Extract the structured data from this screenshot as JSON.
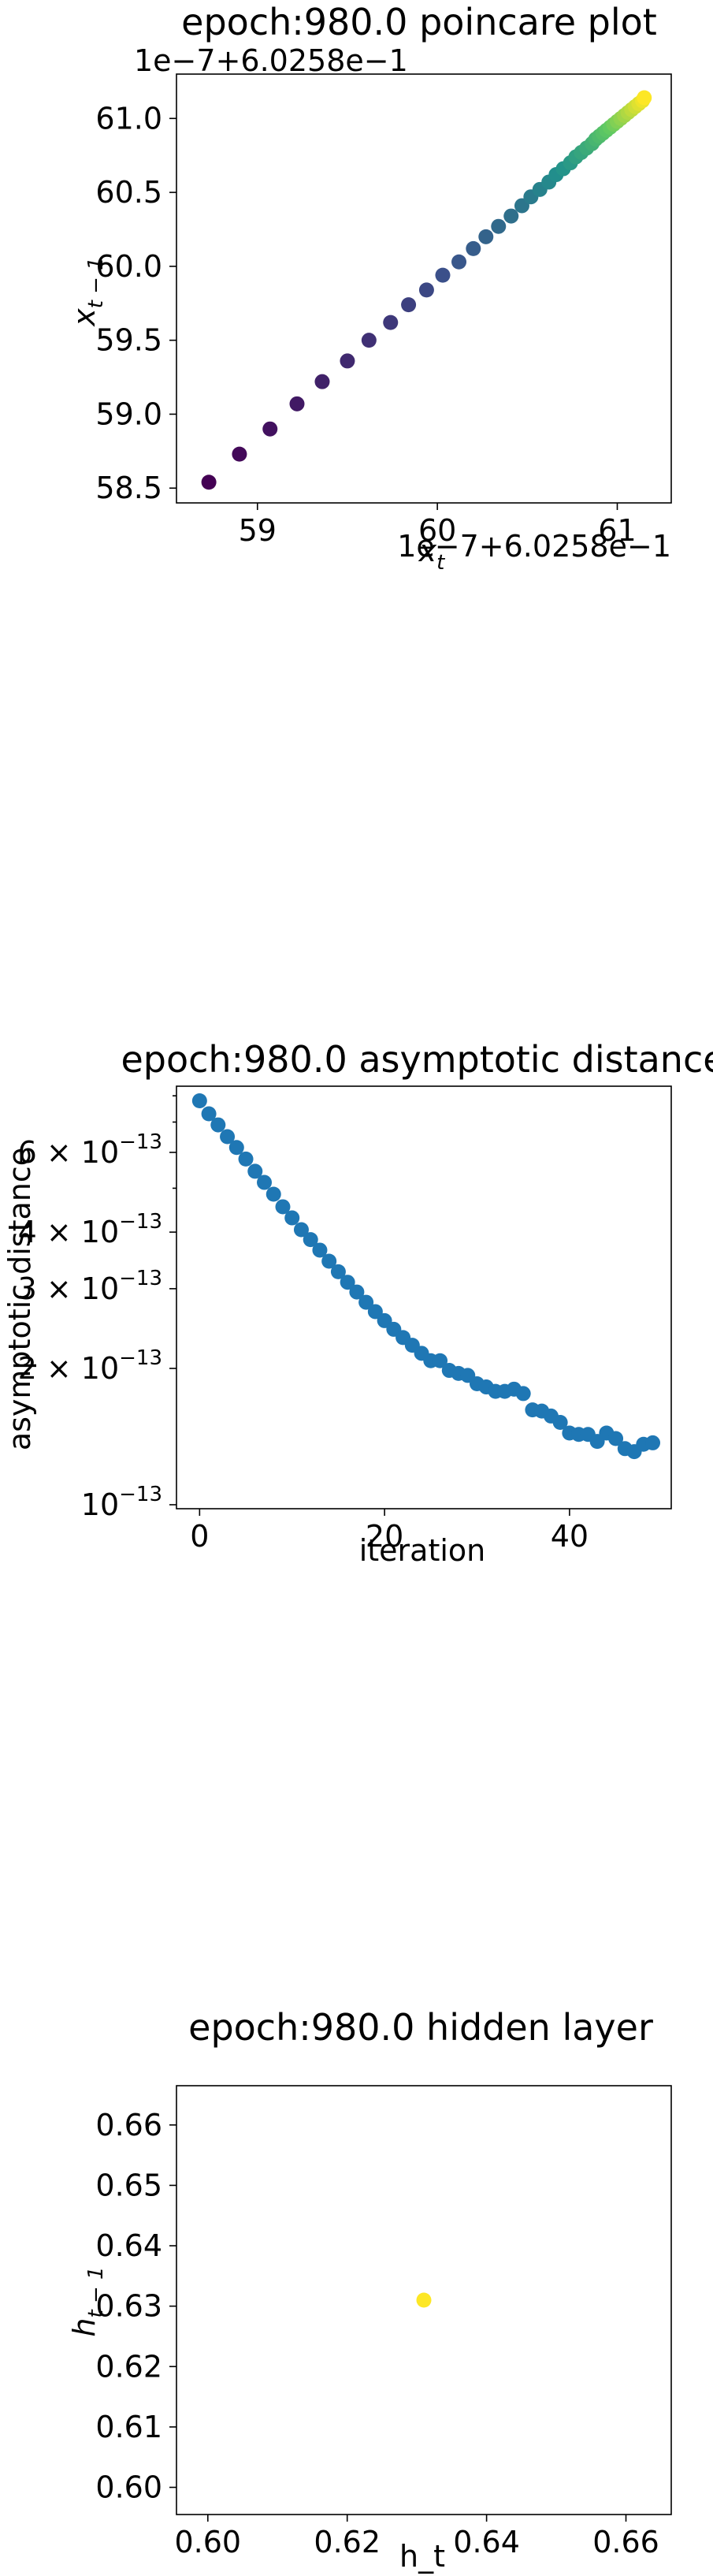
{
  "chart_data": [
    {
      "type": "scatter",
      "title": "epoch:980.0 poincare plot",
      "xlabel": "x_t",
      "ylabel": "x_{t-1}",
      "x_offset_text": "1e−7+6.0258e−1",
      "y_offset_text": "1e−7+6.0258e−1",
      "xlim": [
        58.55,
        61.3
      ],
      "ylim": [
        58.4,
        61.3
      ],
      "xticks": [
        59,
        60,
        61
      ],
      "yticks": [
        58.5,
        59.0,
        59.5,
        60.0,
        60.5,
        61.0
      ],
      "ytick_labels": [
        "58.5",
        "59.0",
        "59.5",
        "60.0",
        "60.5",
        "61.0"
      ],
      "colormap": "viridis",
      "x": [
        58.73,
        58.9,
        59.07,
        59.22,
        59.36,
        59.5,
        59.62,
        59.74,
        59.84,
        59.94,
        60.03,
        60.12,
        60.2,
        60.27,
        60.34,
        60.41,
        60.47,
        60.52,
        60.57,
        60.62,
        60.66,
        60.7,
        60.74,
        60.77,
        60.8,
        60.83,
        60.86,
        60.88,
        60.9,
        60.92,
        60.94,
        60.96,
        60.98,
        61.0,
        61.02,
        61.04,
        61.06,
        61.08,
        61.1,
        61.12,
        61.14,
        61.15
      ],
      "y": [
        58.54,
        58.73,
        58.9,
        59.07,
        59.22,
        59.36,
        59.5,
        59.62,
        59.74,
        59.84,
        59.94,
        60.03,
        60.12,
        60.2,
        60.27,
        60.34,
        60.41,
        60.47,
        60.52,
        60.57,
        60.62,
        60.66,
        60.7,
        60.74,
        60.77,
        60.8,
        60.83,
        60.86,
        60.88,
        60.9,
        60.92,
        60.94,
        60.96,
        60.98,
        61.0,
        61.02,
        61.04,
        61.06,
        61.08,
        61.1,
        61.12,
        61.14
      ]
    },
    {
      "type": "scatter",
      "title": "epoch:980.0 asymptotic distance",
      "xlabel": "iteration",
      "ylabel": "asymptotic distance",
      "yscale": "log",
      "xlim": [
        -2.5,
        51
      ],
      "ylim": [
        9.8e-14,
        8.4e-13
      ],
      "xticks": [
        0,
        20,
        40
      ],
      "yticks": [
        1e-13,
        2e-13,
        3e-13,
        4e-13,
        6e-13
      ],
      "ytick_labels": [
        {
          "mantissa": "",
          "base": "10",
          "exp": "−13"
        },
        {
          "mantissa": "2 × ",
          "base": "10",
          "exp": "−13"
        },
        {
          "mantissa": "3 × ",
          "base": "10",
          "exp": "−13"
        },
        {
          "mantissa": "4 × ",
          "base": "10",
          "exp": "−13"
        },
        {
          "mantissa": "6 × ",
          "base": "10",
          "exp": "−13"
        }
      ],
      "color": "#1f77b4",
      "x": [
        0,
        1,
        2,
        3,
        4,
        5,
        6,
        7,
        8,
        9,
        10,
        11,
        12,
        13,
        14,
        15,
        16,
        17,
        18,
        19,
        20,
        21,
        22,
        23,
        24,
        25,
        26,
        27,
        28,
        29,
        30,
        31,
        32,
        33,
        34,
        35,
        36,
        37,
        38,
        39,
        40,
        41,
        42,
        43,
        44,
        45,
        46,
        47,
        48,
        49
      ],
      "y": [
        7.8e-13,
        7.3e-13,
        6.9e-13,
        6.5e-13,
        6.15e-13,
        5.8e-13,
        5.45e-13,
        5.15e-13,
        4.85e-13,
        4.55e-13,
        4.3e-13,
        4.05e-13,
        3.85e-13,
        3.65e-13,
        3.45e-13,
        3.27e-13,
        3.1e-13,
        2.95e-13,
        2.8e-13,
        2.67e-13,
        2.55e-13,
        2.44e-13,
        2.34e-13,
        2.25e-13,
        2.16e-13,
        2.08e-13,
        2.08e-13,
        1.98e-13,
        1.95e-13,
        1.93e-13,
        1.85e-13,
        1.82e-13,
        1.78e-13,
        1.78e-13,
        1.8e-13,
        1.76e-13,
        1.62e-13,
        1.61e-13,
        1.57e-13,
        1.52e-13,
        1.44e-13,
        1.43e-13,
        1.43e-13,
        1.38e-13,
        1.44e-13,
        1.4e-13,
        1.33e-13,
        1.31e-13,
        1.36e-13,
        1.37e-13
      ]
    },
    {
      "type": "scatter",
      "title": "epoch:980.0 hidden layer",
      "xlabel": "h_t",
      "ylabel": "h_{t-1}",
      "xlim": [
        0.5955,
        0.6665
      ],
      "ylim": [
        0.5955,
        0.6665
      ],
      "xticks": [
        0.6,
        0.62,
        0.64,
        0.66
      ],
      "yticks": [
        0.6,
        0.61,
        0.62,
        0.63,
        0.64,
        0.65,
        0.66
      ],
      "xtick_labels": [
        "0.60",
        "0.62",
        "0.64",
        "0.66"
      ],
      "ytick_labels": [
        "0.60",
        "0.61",
        "0.62",
        "0.63",
        "0.64",
        "0.65",
        "0.66"
      ],
      "color": "#fde725",
      "x": [
        0.631
      ],
      "y": [
        0.631
      ]
    }
  ]
}
